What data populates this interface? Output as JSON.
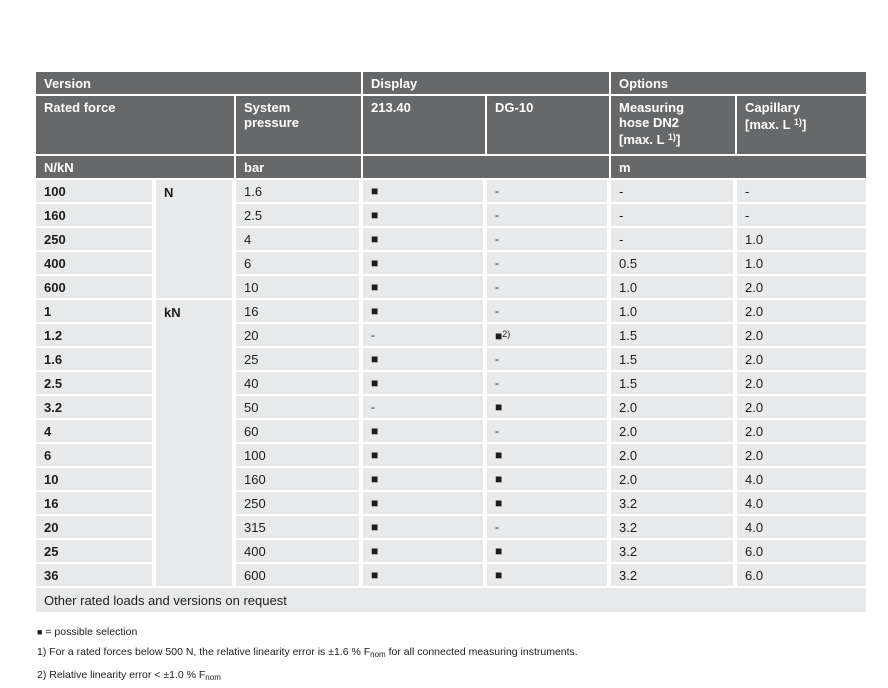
{
  "colors": {
    "header_bg": "#67686a",
    "row_bg": "#e8e9ea",
    "text": "#1d1d1b",
    "gap": "#ffffff"
  },
  "table": {
    "header": {
      "version": "Version",
      "display": "Display",
      "options": "Options",
      "rated_force": "Rated force",
      "system_pressure_line1": "System",
      "system_pressure_line2": "pressure",
      "display_model_1": "213.40",
      "display_model_2": "DG-10",
      "hose": {
        "line1": "Measuring",
        "line2": "hose DN2",
        "bracket_prefix": "[max. L ",
        "sup": "1)",
        "bracket_suffix": "]"
      },
      "capillary": {
        "line1": "Capillary",
        "bracket_prefix": "[max. L ",
        "sup": "1)",
        "bracket_suffix": "]"
      }
    },
    "units": {
      "force": "N/kN",
      "pressure": "bar",
      "options": "m"
    },
    "rows": [
      {
        "force": "100",
        "unit": "N",
        "pressure": "1.6",
        "d213": "■",
        "dg10": "-",
        "hose": "-",
        "capillary": "-"
      },
      {
        "force": "160",
        "unit": "",
        "pressure": "2.5",
        "d213": "■",
        "dg10": "-",
        "hose": "-",
        "capillary": "-"
      },
      {
        "force": "250",
        "unit": "",
        "pressure": "4",
        "d213": "■",
        "dg10": "-",
        "hose": "-",
        "capillary": "1.0"
      },
      {
        "force": "400",
        "unit": "",
        "pressure": "6",
        "d213": "■",
        "dg10": "-",
        "hose": "0.5",
        "capillary": "1.0"
      },
      {
        "force": "600",
        "unit": "",
        "pressure": "10",
        "d213": "■",
        "dg10": "-",
        "hose": "1.0",
        "capillary": "2.0"
      },
      {
        "force": "1",
        "unit": "kN",
        "pressure": "16",
        "d213": "■",
        "dg10": "-",
        "hose": "1.0",
        "capillary": "2.0"
      },
      {
        "force": "1.2",
        "unit": "",
        "pressure": "20",
        "d213": "-",
        "dg10": "■",
        "dg10_sup": "2)",
        "hose": "1.5",
        "capillary": "2.0"
      },
      {
        "force": "1.6",
        "unit": "",
        "pressure": "25",
        "d213": "■",
        "dg10": "-",
        "hose": "1.5",
        "capillary": "2.0"
      },
      {
        "force": "2.5",
        "unit": "",
        "pressure": "40",
        "d213": "■",
        "dg10": "-",
        "hose": "1.5",
        "capillary": "2.0"
      },
      {
        "force": "3.2",
        "unit": "",
        "pressure": "50",
        "d213": "-",
        "dg10": "■",
        "hose": "2.0",
        "capillary": "2.0"
      },
      {
        "force": "4",
        "unit": "",
        "pressure": "60",
        "d213": "■",
        "dg10": "-",
        "hose": "2.0",
        "capillary": "2.0"
      },
      {
        "force": "6",
        "unit": "",
        "pressure": "100",
        "d213": "■",
        "dg10": "■",
        "hose": "2.0",
        "capillary": "2.0"
      },
      {
        "force": "10",
        "unit": "",
        "pressure": "160",
        "d213": "■",
        "dg10": "■",
        "hose": "2.0",
        "capillary": "4.0"
      },
      {
        "force": "16",
        "unit": "",
        "pressure": "250",
        "d213": "■",
        "dg10": "■",
        "hose": "3.2",
        "capillary": "4.0"
      },
      {
        "force": "20",
        "unit": "",
        "pressure": "315",
        "d213": "■",
        "dg10": "-",
        "hose": "3.2",
        "capillary": "4.0"
      },
      {
        "force": "25",
        "unit": "",
        "pressure": "400",
        "d213": "■",
        "dg10": "■",
        "hose": "3.2",
        "capillary": "6.0"
      },
      {
        "force": "36",
        "unit": "",
        "pressure": "600",
        "d213": "■",
        "dg10": "■",
        "hose": "3.2",
        "capillary": "6.0"
      }
    ],
    "footer_note": "Other rated loads and versions on request"
  },
  "legend": {
    "symbol": "■",
    "text": " = possible selection"
  },
  "footnotes": [
    {
      "prefix": "1) For a rated forces below 500 N, the relative linearity error is ±1.6 % F",
      "sub": "nom",
      "suffix": " for all connected measuring instruments."
    },
    {
      "prefix": "2) Relative linearity error < ±1.0 % F",
      "sub": "nom",
      "suffix": ""
    }
  ]
}
